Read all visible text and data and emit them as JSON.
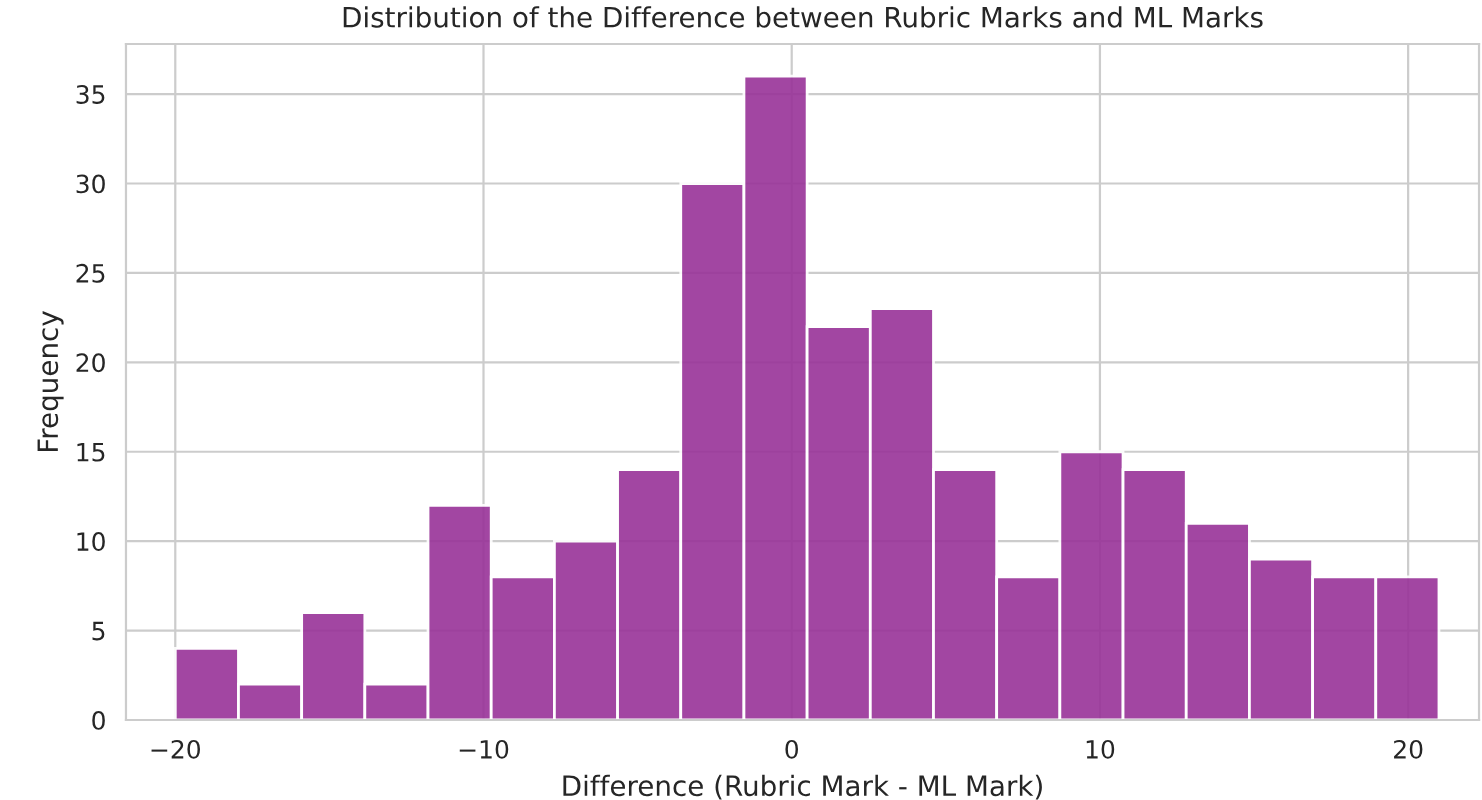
{
  "chart_data": {
    "type": "histogram",
    "title": "Distribution of the Difference between Rubric Marks and ML Marks",
    "xlabel": "Difference (Rubric Mark - ML Mark)",
    "ylabel": "Frequency",
    "bins": [
      -20,
      -17.95,
      -15.9,
      -13.85,
      -11.8,
      -9.75,
      -7.7,
      -5.65,
      -3.6,
      -1.55,
      0.5,
      2.55,
      4.6,
      6.65,
      8.7,
      10.75,
      12.8,
      14.85,
      16.9,
      18.95,
      21
    ],
    "values": [
      4,
      2,
      6,
      2,
      12,
      8,
      10,
      14,
      30,
      36,
      22,
      23,
      14,
      8,
      15,
      14,
      11,
      9,
      8,
      8
    ],
    "color": "#993399",
    "xlim": [
      -21.6,
      22.3
    ],
    "xticks": [
      {
        "value": -20,
        "label": "−20"
      },
      {
        "value": -10,
        "label": "−10"
      },
      0,
      10,
      20
    ],
    "ylim": [
      0,
      37.8
    ],
    "yticks": [
      0,
      5,
      10,
      15,
      20,
      25,
      30,
      35
    ],
    "grid": true
  }
}
